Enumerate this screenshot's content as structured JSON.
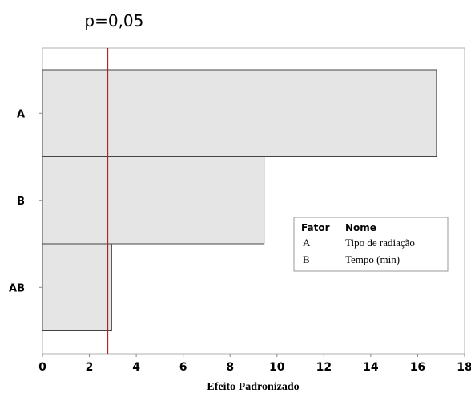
{
  "chart_data": {
    "type": "bar",
    "orientation": "horizontal",
    "categories": [
      "A",
      "B",
      "AB"
    ],
    "values": [
      16.8,
      9.45,
      2.95
    ],
    "reference_line": {
      "value": 2.78,
      "label": "p=0,05",
      "color": "#b22222"
    },
    "xlabel": "Efeito Padronizado",
    "ylabel": "",
    "xlim": [
      0,
      18
    ],
    "xticks": [
      0,
      2,
      4,
      6,
      8,
      10,
      12,
      14,
      16,
      18
    ],
    "bar_color": "#e5e5e5",
    "grid": false,
    "legend": {
      "placement": "right",
      "headers": {
        "code": "Fator",
        "name": "Nome"
      },
      "rows": [
        {
          "code": "A",
          "name": "Tipo de radiação"
        },
        {
          "code": "B",
          "name": "Tempo (min)"
        }
      ]
    }
  }
}
